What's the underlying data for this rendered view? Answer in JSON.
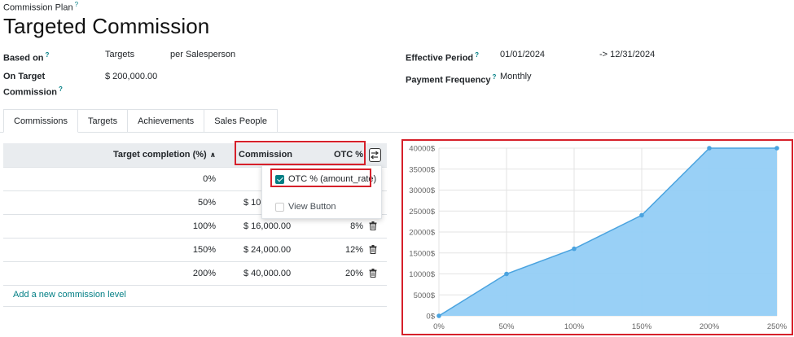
{
  "breadcrumb": {
    "label": "Commission Plan",
    "help": "?"
  },
  "title": "Targeted Commission",
  "fields": {
    "based_on": {
      "label": "Based on",
      "help": "?",
      "value1": "Targets",
      "value2": "per Salesperson"
    },
    "on_target": {
      "label_line1": "On Target",
      "label_line2": "Commission",
      "help": "?",
      "value": "$ 200,000.00"
    },
    "effective_period": {
      "label": "Effective Period",
      "help": "?",
      "start": "01/01/2024",
      "end": "-> 12/31/2024"
    },
    "payment_frequency": {
      "label": "Payment Frequency",
      "help": "?",
      "value": "Monthly"
    }
  },
  "tabs": [
    "Commissions",
    "Targets",
    "Achievements",
    "Sales People"
  ],
  "table": {
    "headers": {
      "target": "Target completion (%)",
      "commission": "Commission",
      "otc": "OTC %"
    },
    "rows": [
      {
        "pct": "0%",
        "amount": "",
        "rate": ""
      },
      {
        "pct": "50%",
        "amount": "$ 10,",
        "rate": ""
      },
      {
        "pct": "100%",
        "amount": "$ 16,000.00",
        "rate": "8%"
      },
      {
        "pct": "150%",
        "amount": "$ 24,000.00",
        "rate": "12%"
      },
      {
        "pct": "200%",
        "amount": "$ 40,000.00",
        "rate": "20%"
      }
    ],
    "add_line": "Add a new commission level"
  },
  "column_menu": {
    "items": [
      {
        "label": "OTC % (amount_rate)",
        "checked": true
      },
      {
        "label": "View Button",
        "checked": false
      }
    ]
  },
  "colors": {
    "accent": "#017e84",
    "highlight": "#d6202a",
    "area_fill": "#94cdf5",
    "area_line": "#4aa3df"
  },
  "chart_data": {
    "type": "area",
    "x": [
      "0%",
      "50%",
      "100%",
      "150%",
      "200%",
      "250%"
    ],
    "y_ticks": [
      "0$",
      "5000$",
      "10000$",
      "15000$",
      "20000$",
      "25000$",
      "30000$",
      "35000$",
      "40000$"
    ],
    "values": [
      0,
      10000,
      16000,
      24000,
      40000,
      40000
    ],
    "ylim": [
      0,
      40000
    ],
    "grid": true
  }
}
